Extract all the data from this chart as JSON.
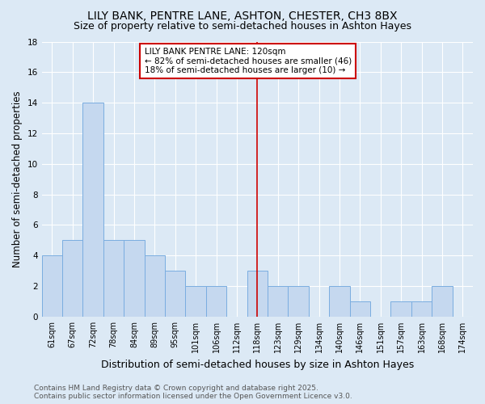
{
  "title1": "LILY BANK, PENTRE LANE, ASHTON, CHESTER, CH3 8BX",
  "title2": "Size of property relative to semi-detached houses in Ashton Hayes",
  "xlabel": "Distribution of semi-detached houses by size in Ashton Hayes",
  "ylabel": "Number of semi-detached properties",
  "categories": [
    "61sqm",
    "67sqm",
    "72sqm",
    "78sqm",
    "84sqm",
    "89sqm",
    "95sqm",
    "101sqm",
    "106sqm",
    "112sqm",
    "118sqm",
    "123sqm",
    "129sqm",
    "134sqm",
    "140sqm",
    "146sqm",
    "151sqm",
    "157sqm",
    "163sqm",
    "168sqm",
    "174sqm"
  ],
  "values": [
    4,
    5,
    14,
    5,
    5,
    4,
    3,
    2,
    2,
    0,
    3,
    2,
    2,
    0,
    2,
    1,
    0,
    1,
    1,
    2,
    0
  ],
  "bar_color": "#c5d8ef",
  "bar_edge_color": "#7aade0",
  "vline_x": 10,
  "vline_color": "#cc0000",
  "annotation_title": "LILY BANK PENTRE LANE: 120sqm",
  "annotation_line1": "← 82% of semi-detached houses are smaller (46)",
  "annotation_line2": "18% of semi-detached houses are larger (10) →",
  "annotation_box_color": "#cc0000",
  "ylim": [
    0,
    18
  ],
  "yticks": [
    0,
    2,
    4,
    6,
    8,
    10,
    12,
    14,
    16,
    18
  ],
  "footer1": "Contains HM Land Registry data © Crown copyright and database right 2025.",
  "footer2": "Contains public sector information licensed under the Open Government Licence v3.0.",
  "bg_color": "#dce9f5",
  "plot_bg_color": "#dce9f5",
  "grid_color": "#ffffff",
  "title_fontsize": 10,
  "subtitle_fontsize": 9,
  "axis_label_fontsize": 8.5,
  "tick_fontsize": 7,
  "footer_fontsize": 6.5,
  "ann_fontsize": 7.5
}
